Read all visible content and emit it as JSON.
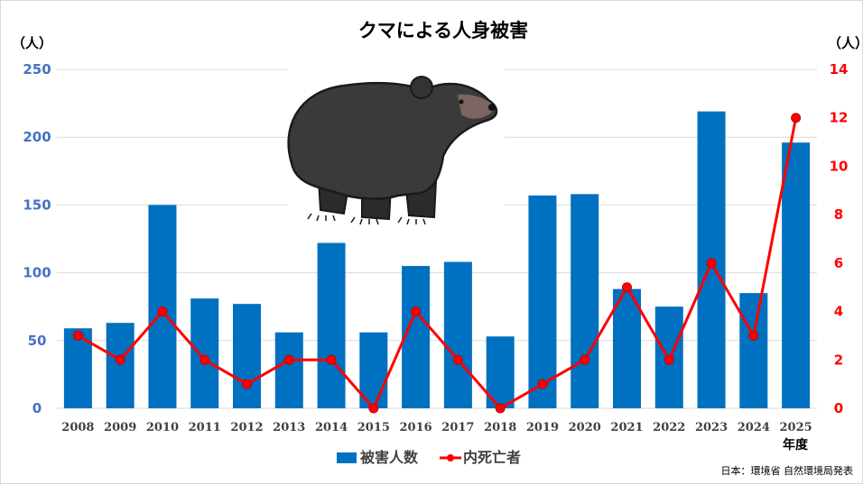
{
  "chart_data": {
    "type": "bar",
    "title": "クマによる人身被害",
    "categories": [
      "2008",
      "2009",
      "2010",
      "2011",
      "2012",
      "2013",
      "2014",
      "2015",
      "2016",
      "2017",
      "2018",
      "2019",
      "2020",
      "2021",
      "2022",
      "2023",
      "2024",
      "2025"
    ],
    "series": [
      {
        "name": "被害人数",
        "type": "bar",
        "axis": "left",
        "color": "#0070c0",
        "values": [
          59,
          63,
          150,
          81,
          77,
          56,
          122,
          56,
          105,
          108,
          53,
          157,
          158,
          88,
          75,
          219,
          85,
          196
        ]
      },
      {
        "name": "内死亡者",
        "type": "line",
        "axis": "right",
        "color": "#ff0000",
        "values": [
          3,
          2,
          4,
          2,
          1,
          2,
          2,
          0,
          4,
          2,
          0,
          1,
          2,
          5,
          2,
          6,
          3,
          12
        ]
      }
    ],
    "y_left": {
      "unit": "（人）",
      "ylim": [
        0,
        250
      ],
      "ticks": [
        0,
        50,
        100,
        150,
        200,
        250
      ]
    },
    "y_right": {
      "unit": "（人）",
      "ylim": [
        0,
        14
      ],
      "ticks": [
        0,
        2,
        4,
        6,
        8,
        10,
        12,
        14
      ]
    },
    "xlabel": "年度",
    "grid": true,
    "legend": "bottom",
    "source": "日本：環境省 自然環境局発表",
    "illustration": "bear-icon"
  }
}
